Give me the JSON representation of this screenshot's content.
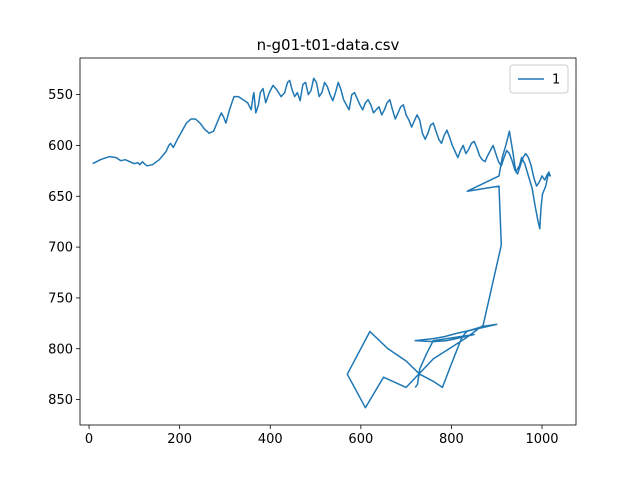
{
  "chart_data": {
    "type": "line",
    "title": "n-g01-t01-data.csv",
    "xlabel": "",
    "ylabel": "",
    "xlim": [
      -20,
      1075
    ],
    "ylim": [
      875,
      514
    ],
    "y_inverted": true,
    "grid": false,
    "legend_position": "top-right",
    "x_ticks": [
      "0",
      "200",
      "400",
      "600",
      "800",
      "1000"
    ],
    "y_ticks": [
      "550",
      "600",
      "650",
      "700",
      "750",
      "800",
      "850"
    ],
    "series": [
      {
        "name": "1",
        "color": "#1f77b4",
        "x": [
          8,
          25,
          45,
          60,
          70,
          80,
          90,
          100,
          108,
          112,
          118,
          122,
          128,
          140,
          155,
          170,
          176,
          180,
          186,
          195,
          205,
          215,
          225,
          235,
          245,
          255,
          265,
          275,
          285,
          292,
          297,
          302,
          310,
          320,
          330,
          340,
          350,
          358,
          362,
          364,
          368,
          374,
          378,
          384,
          390,
          398,
          406,
          414,
          424,
          432,
          438,
          443,
          448,
          454,
          460,
          466,
          472,
          478,
          484,
          490,
          496,
          502,
          508,
          514,
          520,
          526,
          532,
          538,
          544,
          550,
          556,
          562,
          568,
          574,
          580,
          586,
          592,
          598,
          604,
          610,
          616,
          622,
          628,
          634,
          640,
          646,
          652,
          658,
          664,
          670,
          676,
          682,
          688,
          694,
          700,
          706,
          712,
          718,
          724,
          730,
          736,
          742,
          748,
          754,
          760,
          766,
          772,
          778,
          784,
          790,
          796,
          802,
          808,
          814,
          820,
          826,
          832,
          838,
          844,
          850,
          856,
          862,
          868,
          874,
          880,
          886,
          892,
          898,
          904,
          910,
          916,
          922,
          928,
          934,
          940,
          946,
          952,
          958,
          964,
          970,
          976,
          982,
          988,
          994,
          1000,
          1006,
          1012,
          1018,
          1015,
          1008,
          1001,
          998,
          995,
          990,
          985,
          978,
          970,
          962,
          955,
          950,
          942,
          935,
          928,
          920,
          912,
          905,
          835,
          905,
          910,
          870,
          830,
          760,
          700,
          650,
          610,
          570,
          620,
          660,
          700,
          730,
          760,
          780,
          800,
          815,
          822,
          828,
          834,
          840,
          900,
          870,
          840,
          810,
          785,
          760,
          720,
          760,
          790,
          810,
          830,
          850,
          790,
          760,
          745,
          730,
          725,
          720
        ],
        "y": [
          618,
          614,
          611,
          612,
          615,
          614,
          616,
          618,
          617,
          619,
          616,
          618,
          620,
          619,
          614,
          606,
          600,
          598,
          602,
          594,
          586,
          578,
          574,
          574,
          578,
          584,
          588,
          586,
          575,
          568,
          572,
          578,
          565,
          552,
          552,
          555,
          558,
          565,
          552,
          548,
          568,
          560,
          548,
          544,
          558,
          548,
          541,
          545,
          552,
          548,
          538,
          536,
          545,
          552,
          548,
          556,
          540,
          538,
          550,
          546,
          534,
          538,
          552,
          548,
          538,
          542,
          550,
          556,
          548,
          538,
          545,
          555,
          560,
          565,
          550,
          548,
          554,
          560,
          565,
          558,
          555,
          560,
          568,
          565,
          562,
          570,
          565,
          558,
          555,
          565,
          574,
          568,
          562,
          560,
          570,
          575,
          582,
          576,
          570,
          575,
          588,
          594,
          588,
          580,
          578,
          586,
          594,
          598,
          590,
          585,
          592,
          600,
          606,
          612,
          605,
          600,
          608,
          604,
          598,
          596,
          602,
          610,
          614,
          616,
          610,
          605,
          600,
          608,
          616,
          620,
          612,
          605,
          608,
          615,
          624,
          628,
          620,
          612,
          608,
          612,
          620,
          632,
          640,
          636,
          630,
          634,
          628,
          630,
          626,
          640,
          648,
          660,
          682,
          672,
          660,
          642,
          630,
          618,
          612,
          620,
          626,
          605,
          586,
          600,
          612,
          630,
          645,
          640,
          698,
          777,
          790,
          810,
          838,
          828,
          858,
          825,
          783,
          800,
          812,
          825,
          832,
          838,
          815,
          798,
          790,
          786,
          783,
          782,
          776,
          778,
          782,
          785,
          788,
          790,
          792,
          793,
          792,
          790,
          788,
          786,
          790,
          792,
          805,
          820,
          835,
          838
        ]
      }
    ]
  }
}
